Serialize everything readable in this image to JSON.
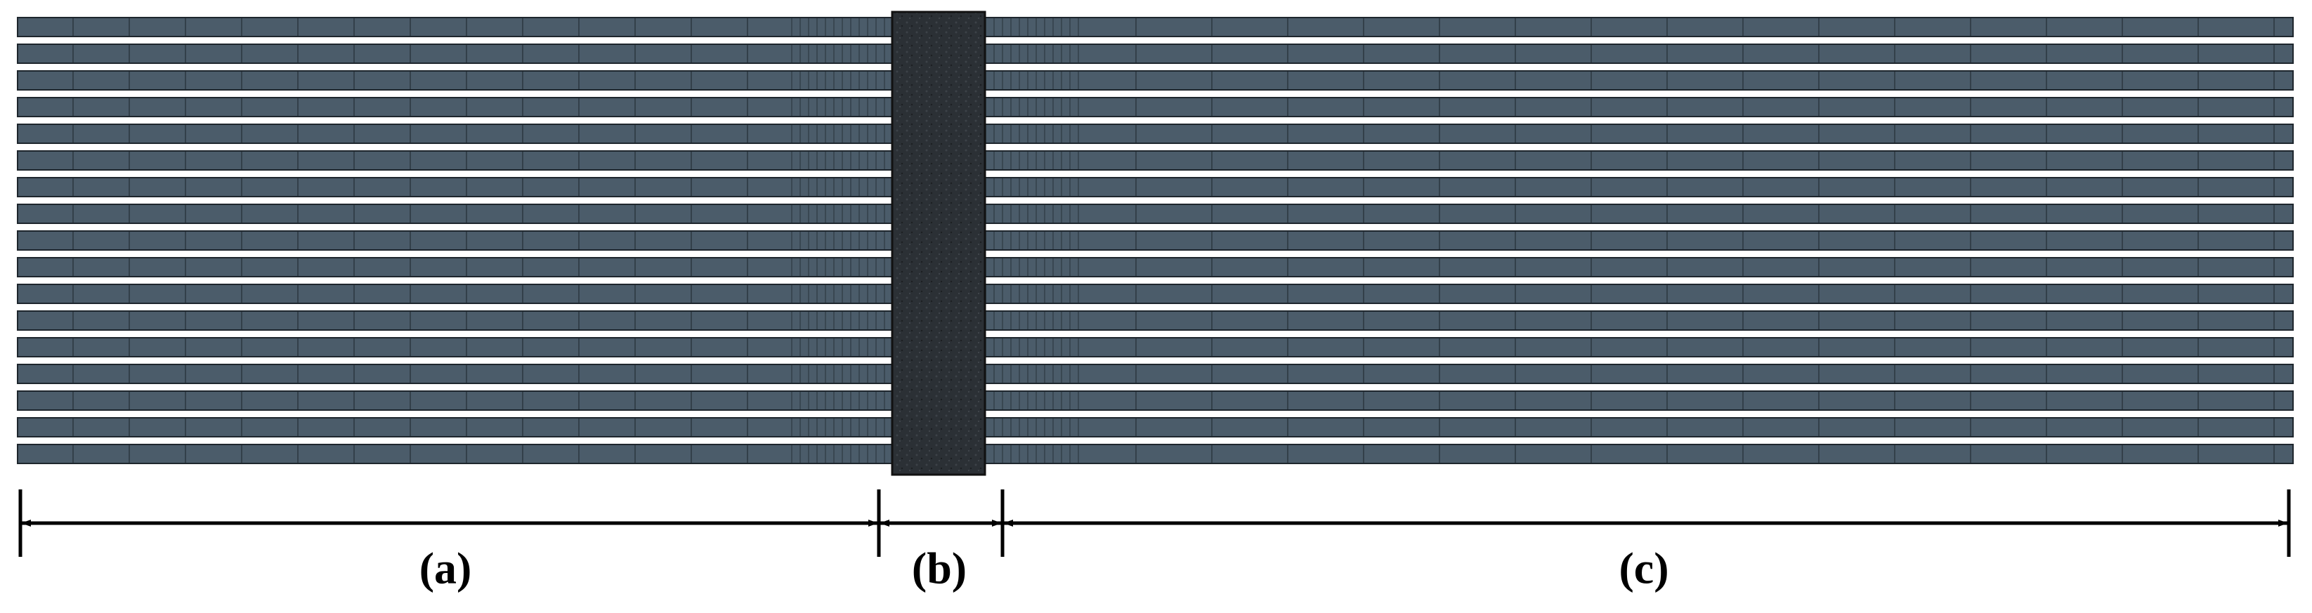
{
  "labels": {
    "a": "(a)",
    "b": "(b)",
    "c": "(c)"
  }
}
